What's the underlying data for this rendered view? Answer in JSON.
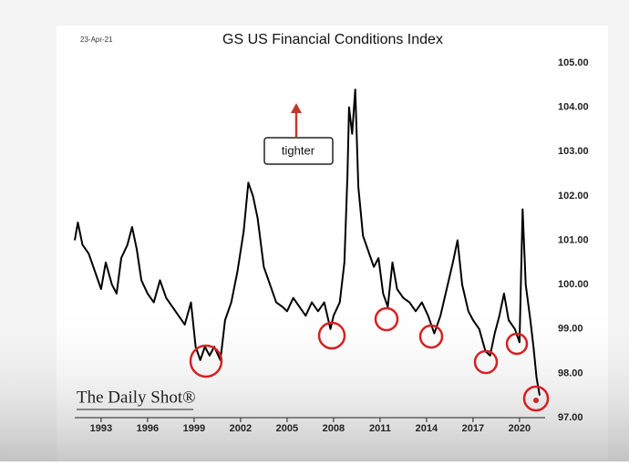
{
  "chart_data": {
    "type": "line",
    "title": "GS US Financial Conditions Index",
    "date_label": "23-Apr-21",
    "annotation": "tighter",
    "source": "The Daily Shot®",
    "color": "#000000",
    "x": [
      1991.3,
      1991.5,
      1991.8,
      1992.2,
      1992.6,
      1993.0,
      1993.3,
      1993.7,
      1994.0,
      1994.3,
      1994.7,
      1995.0,
      1995.3,
      1995.6,
      1996.0,
      1996.4,
      1996.8,
      1997.2,
      1997.6,
      1998.0,
      1998.4,
      1998.8,
      1999.1,
      1999.4,
      1999.7,
      2000.0,
      2000.3,
      2000.7,
      2001.0,
      2001.4,
      2001.8,
      2002.2,
      2002.5,
      2002.8,
      2003.1,
      2003.5,
      2003.9,
      2004.3,
      2004.7,
      2005.0,
      2005.4,
      2005.8,
      2006.2,
      2006.6,
      2007.0,
      2007.4,
      2007.8,
      2008.0,
      2008.4,
      2008.7,
      2008.9,
      2009.0,
      2009.2,
      2009.4,
      2009.6,
      2009.9,
      2010.3,
      2010.6,
      2010.9,
      2011.2,
      2011.5,
      2011.8,
      2012.1,
      2012.5,
      2012.9,
      2013.3,
      2013.7,
      2014.1,
      2014.5,
      2014.9,
      2015.3,
      2015.7,
      2016.0,
      2016.3,
      2016.7,
      2017.0,
      2017.4,
      2017.8,
      2018.1,
      2018.4,
      2018.7,
      2019.0,
      2019.3,
      2019.7,
      2020.0,
      2020.2,
      2020.4,
      2020.7,
      2020.9,
      2021.1,
      2021.3
    ],
    "values": [
      101.0,
      101.4,
      100.9,
      100.7,
      100.3,
      99.9,
      100.5,
      100.0,
      99.8,
      100.6,
      100.9,
      101.3,
      100.8,
      100.1,
      99.8,
      99.6,
      100.1,
      99.7,
      99.5,
      99.3,
      99.1,
      99.6,
      98.6,
      98.3,
      98.6,
      98.4,
      98.6,
      98.3,
      99.2,
      99.6,
      100.3,
      101.2,
      102.3,
      102.0,
      101.5,
      100.4,
      100.0,
      99.6,
      99.5,
      99.4,
      99.7,
      99.5,
      99.3,
      99.6,
      99.4,
      99.6,
      99.0,
      99.3,
      99.6,
      100.5,
      102.5,
      104.0,
      103.4,
      104.4,
      102.2,
      101.1,
      100.7,
      100.4,
      100.6,
      99.8,
      99.5,
      100.5,
      99.9,
      99.7,
      99.6,
      99.4,
      99.6,
      99.3,
      98.9,
      99.3,
      99.9,
      100.5,
      101.0,
      100.0,
      99.4,
      99.2,
      99.0,
      98.5,
      98.4,
      98.9,
      99.3,
      99.8,
      99.2,
      99.0,
      98.7,
      101.7,
      100.0,
      99.2,
      98.6,
      97.9,
      97.5
    ],
    "xlim": [
      1991.3,
      2021.3
    ],
    "xticks": [
      1993,
      1996,
      1999,
      2002,
      2005,
      2008,
      2011,
      2014,
      2017,
      2020
    ],
    "ylim": [
      97,
      105
    ],
    "yticks": [
      {
        "value": 97,
        "label": "97.00"
      },
      {
        "value": 98,
        "label": "98.00"
      },
      {
        "value": 99,
        "label": "99.00"
      },
      {
        "value": 100,
        "label": "100.00"
      },
      {
        "value": 101,
        "label": "101.00"
      },
      {
        "value": 102,
        "label": "102.00"
      },
      {
        "value": 103,
        "label": "103.00"
      },
      {
        "value": 104,
        "label": "104.00"
      },
      {
        "value": 105,
        "label": "105.00"
      }
    ]
  }
}
